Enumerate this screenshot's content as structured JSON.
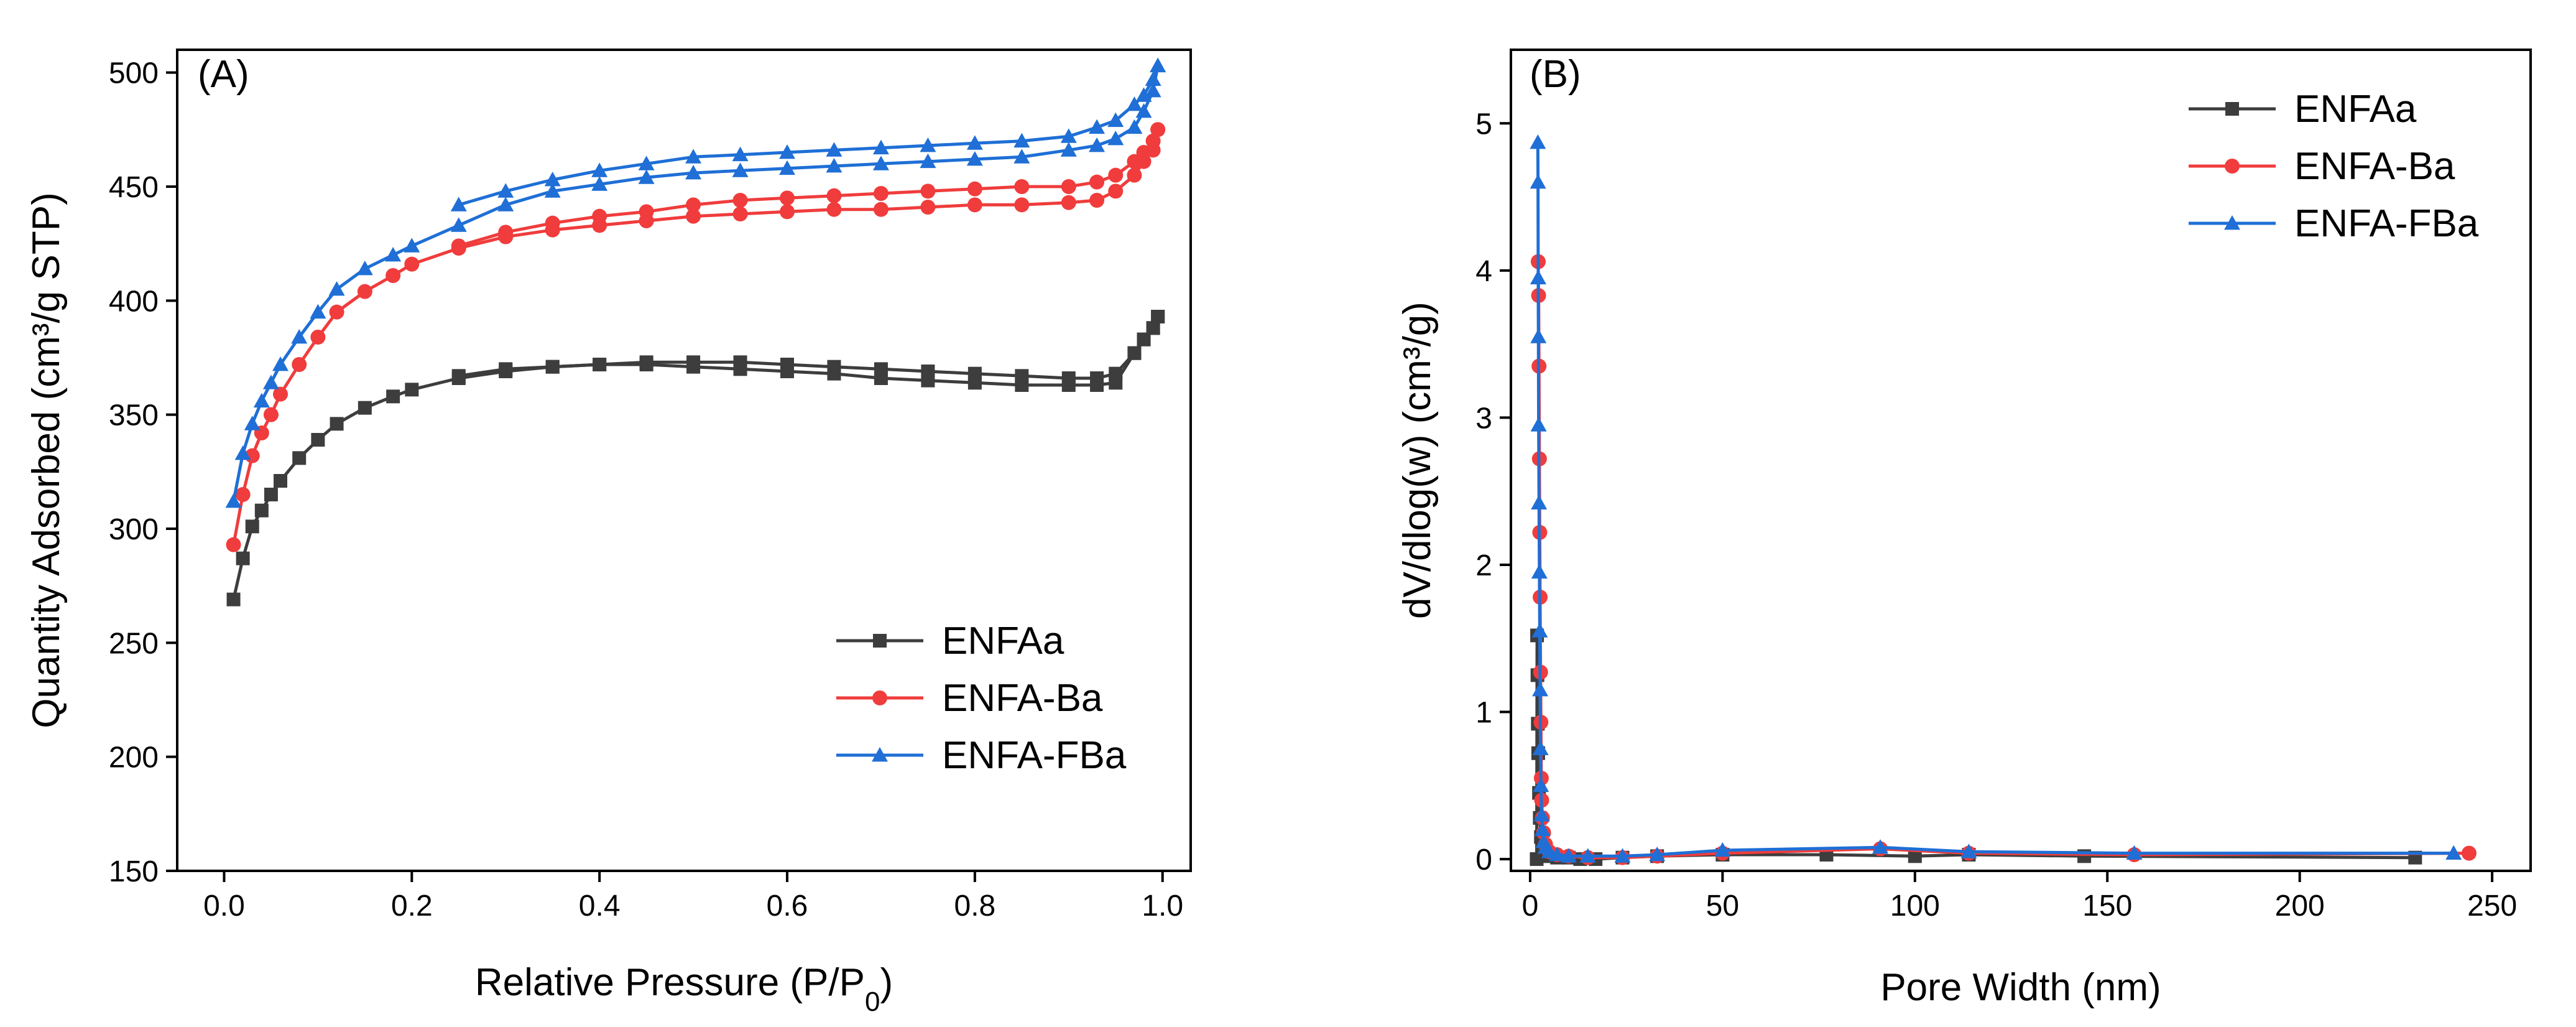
{
  "colors": {
    "ENFAa": "#3d3d3d",
    "ENFA-Ba": "#f03c3c",
    "ENFA-FBa": "#1f6fd6"
  },
  "chart_data": [
    {
      "type": "line",
      "panel_label": "(A)",
      "xlabel": "Relative Pressure (P/P",
      "xlabel_sub": "0",
      "xlabel_end": ")",
      "ylabel": "Quantity Adsorbed (cm³/g STP)",
      "xlim": [
        -0.05,
        1.03
      ],
      "ylim": [
        150,
        510
      ],
      "x_ticks": [
        0.0,
        0.2,
        0.4,
        0.6,
        0.8,
        1.0
      ],
      "x_tick_labels": [
        "0.0",
        "0.2",
        "0.4",
        "0.6",
        "0.8",
        "1.0"
      ],
      "y_ticks": [
        150,
        200,
        250,
        300,
        350,
        400,
        450,
        500
      ],
      "y_tick_labels": [
        "150",
        "200",
        "250",
        "300",
        "350",
        "400",
        "450",
        "500"
      ],
      "legend_position": "bottom-right",
      "series": [
        {
          "name": "ENFAa",
          "marker": "square",
          "adsorption": {
            "x": [
              0.01,
              0.02,
              0.03,
              0.04,
              0.05,
              0.06,
              0.08,
              0.1,
              0.12,
              0.15,
              0.18,
              0.2,
              0.25,
              0.3,
              0.35,
              0.4,
              0.45,
              0.5,
              0.55,
              0.6,
              0.65,
              0.7,
              0.75,
              0.8,
              0.85,
              0.9,
              0.93,
              0.95,
              0.97,
              0.98,
              0.99,
              0.995
            ],
            "y": [
              269,
              287,
              301,
              308,
              315,
              321,
              331,
              339,
              346,
              353,
              358,
              361,
              366,
              369,
              371,
              372,
              372,
              371,
              370,
              369,
              368,
              366,
              365,
              364,
              363,
              363,
              363,
              364,
              377,
              383,
              388,
              393
            ]
          },
          "desorption": {
            "x": [
              0.995,
              0.99,
              0.98,
              0.97,
              0.95,
              0.93,
              0.9,
              0.85,
              0.8,
              0.75,
              0.7,
              0.65,
              0.6,
              0.55,
              0.5,
              0.45,
              0.4,
              0.35,
              0.3,
              0.25
            ],
            "y": [
              393,
              388,
              383,
              377,
              368,
              366,
              366,
              367,
              368,
              369,
              370,
              371,
              372,
              373,
              373,
              373,
              372,
              371,
              370,
              367
            ]
          }
        },
        {
          "name": "ENFA-Ba",
          "marker": "circle",
          "adsorption": {
            "x": [
              0.01,
              0.02,
              0.03,
              0.04,
              0.05,
              0.06,
              0.08,
              0.1,
              0.12,
              0.15,
              0.18,
              0.2,
              0.25,
              0.3,
              0.35,
              0.4,
              0.45,
              0.5,
              0.55,
              0.6,
              0.65,
              0.7,
              0.75,
              0.8,
              0.85,
              0.9,
              0.93,
              0.95,
              0.97,
              0.98,
              0.99,
              0.995
            ],
            "y": [
              293,
              315,
              332,
              342,
              350,
              359,
              372,
              384,
              395,
              404,
              411,
              416,
              423,
              428,
              431,
              433,
              435,
              437,
              438,
              439,
              440,
              440,
              441,
              442,
              442,
              443,
              444,
              448,
              455,
              461,
              466,
              475
            ]
          },
          "desorption": {
            "x": [
              0.995,
              0.99,
              0.98,
              0.97,
              0.95,
              0.93,
              0.9,
              0.85,
              0.8,
              0.75,
              0.7,
              0.65,
              0.6,
              0.55,
              0.5,
              0.45,
              0.4,
              0.35,
              0.3,
              0.25
            ],
            "y": [
              475,
              470,
              465,
              461,
              455,
              452,
              450,
              450,
              449,
              448,
              447,
              446,
              445,
              444,
              442,
              439,
              437,
              434,
              430,
              424
            ]
          }
        },
        {
          "name": "ENFA-FBa",
          "marker": "triangle",
          "adsorption": {
            "x": [
              0.01,
              0.02,
              0.03,
              0.04,
              0.05,
              0.06,
              0.08,
              0.1,
              0.12,
              0.15,
              0.18,
              0.2,
              0.25,
              0.3,
              0.35,
              0.4,
              0.45,
              0.5,
              0.55,
              0.6,
              0.65,
              0.7,
              0.75,
              0.8,
              0.85,
              0.9,
              0.93,
              0.95,
              0.97,
              0.98,
              0.99,
              0.995
            ],
            "y": [
              312,
              333,
              346,
              356,
              364,
              372,
              384,
              395,
              405,
              414,
              420,
              424,
              433,
              442,
              448,
              451,
              454,
              456,
              457,
              458,
              459,
              460,
              461,
              462,
              463,
              466,
              468,
              471,
              476,
              483,
              492,
              503
            ]
          },
          "desorption": {
            "x": [
              0.995,
              0.99,
              0.98,
              0.97,
              0.95,
              0.93,
              0.9,
              0.85,
              0.8,
              0.75,
              0.7,
              0.65,
              0.6,
              0.55,
              0.5,
              0.45,
              0.4,
              0.35,
              0.3,
              0.25
            ],
            "y": [
              503,
              497,
              490,
              486,
              479,
              476,
              472,
              470,
              469,
              468,
              467,
              466,
              465,
              464,
              463,
              460,
              457,
              453,
              448,
              442
            ]
          }
        }
      ]
    },
    {
      "type": "line",
      "panel_label": "(B)",
      "xlabel": "Pore Width (nm)",
      "ylabel": "dV/dlog(w) (cm³/g)",
      "xlim": [
        -5,
        260
      ],
      "ylim": [
        -0.08,
        5.5
      ],
      "x_ticks": [
        0,
        50,
        100,
        150,
        200,
        250
      ],
      "x_tick_labels": [
        "0",
        "50",
        "100",
        "150",
        "200",
        "250"
      ],
      "y_ticks": [
        0,
        1,
        2,
        3,
        4,
        5
      ],
      "y_tick_labels": [
        "0",
        "1",
        "2",
        "3",
        "4",
        "5"
      ],
      "legend_position": "top-right",
      "series": [
        {
          "name": "ENFAa",
          "marker": "square",
          "x": [
            1.7,
            1.8,
            1.9,
            2.0,
            2.1,
            2.3,
            2.5,
            2.8,
            3.2,
            4,
            5,
            7,
            10,
            13,
            17,
            24,
            33,
            50,
            77,
            100,
            114,
            144,
            230
          ],
          "y": [
            0.0,
            1.52,
            1.25,
            0.92,
            0.72,
            0.45,
            0.28,
            0.15,
            0.08,
            0.04,
            0.02,
            0.01,
            0.01,
            0.0,
            0.0,
            0.01,
            0.02,
            0.03,
            0.03,
            0.02,
            0.03,
            0.02,
            0.01
          ]
        },
        {
          "name": "ENFA-Ba",
          "marker": "circle",
          "x": [
            2.1,
            2.2,
            2.3,
            2.4,
            2.5,
            2.6,
            2.7,
            2.8,
            2.9,
            3.0,
            3.2,
            3.5,
            4,
            5,
            7,
            10,
            15,
            24,
            33,
            50,
            91,
            114,
            157,
            244
          ],
          "y": [
            4.06,
            3.83,
            3.35,
            2.72,
            2.22,
            1.78,
            1.27,
            0.93,
            0.55,
            0.4,
            0.28,
            0.18,
            0.1,
            0.05,
            0.03,
            0.02,
            0.01,
            0.01,
            0.02,
            0.04,
            0.07,
            0.04,
            0.03,
            0.04
          ]
        },
        {
          "name": "ENFA-FBa",
          "marker": "triangle",
          "x": [
            2.0,
            2.05,
            2.1,
            2.15,
            2.2,
            2.3,
            2.4,
            2.5,
            2.6,
            2.7,
            2.8,
            3.0,
            3.2,
            3.5,
            4,
            5,
            7,
            10,
            15,
            24,
            33,
            50,
            91,
            114,
            157,
            240
          ],
          "y": [
            4.87,
            4.6,
            3.95,
            3.55,
            2.95,
            2.42,
            1.95,
            1.55,
            1.15,
            0.75,
            0.5,
            0.3,
            0.2,
            0.12,
            0.08,
            0.05,
            0.03,
            0.02,
            0.02,
            0.02,
            0.03,
            0.06,
            0.08,
            0.05,
            0.04,
            0.04
          ]
        }
      ]
    }
  ]
}
